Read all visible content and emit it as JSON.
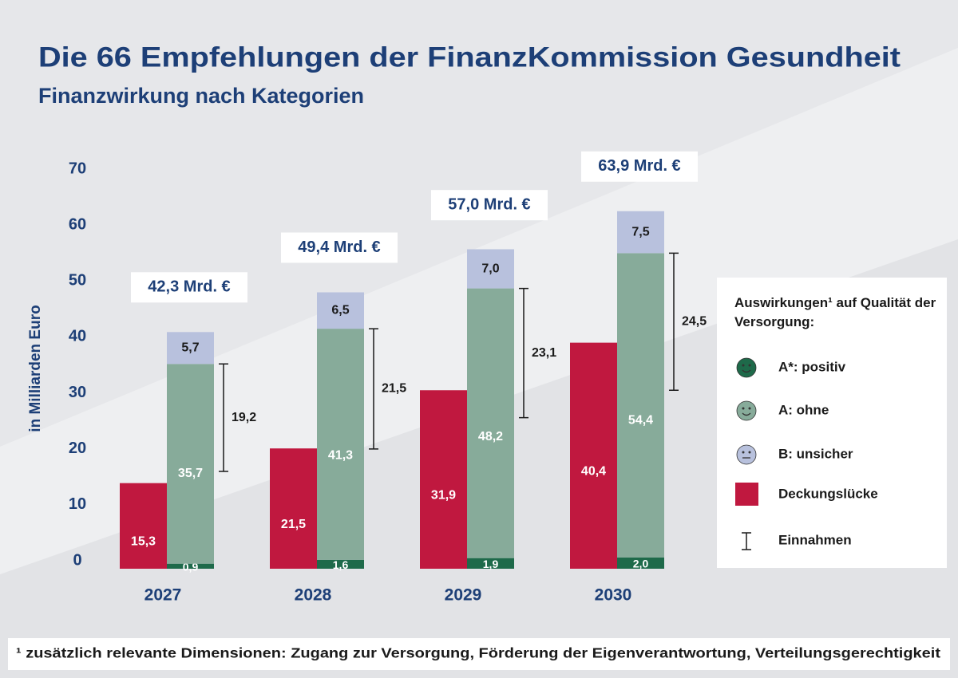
{
  "chart_data": {
    "type": "bar",
    "title": "Die 66 Empfehlungen der FinanzKommission Gesundheit",
    "subtitle": "Finanzwirkung nach Kategorien",
    "y_label": "in Milliarden Euro",
    "categories": [
      "2027",
      "2028",
      "2029",
      "2030"
    ],
    "ylim": [
      0,
      70
    ],
    "yticks": [
      0,
      10,
      20,
      30,
      40,
      50,
      60,
      70
    ],
    "series": [
      {
        "name": "A*: positiv",
        "color": "#1e6a4a",
        "values": [
          0.9,
          1.6,
          1.9,
          2.0
        ],
        "value_labels": [
          "0,9",
          "1,6",
          "1,9",
          "2,0"
        ]
      },
      {
        "name": "A: ohne",
        "color": "#87ab9a",
        "values": [
          35.7,
          41.3,
          48.2,
          54.4
        ],
        "value_labels": [
          "35,7",
          "41,3",
          "48,2",
          "54,4"
        ]
      },
      {
        "name": "B: unsicher",
        "color": "#b8c1dd",
        "values": [
          5.7,
          6.5,
          7.0,
          7.5
        ],
        "value_labels": [
          "5,7",
          "6,5",
          "7,0",
          "7,5"
        ]
      }
    ],
    "gap_series": {
      "name": "Deckungslücke",
      "color": "#c0183f",
      "values": [
        15.3,
        21.5,
        31.9,
        40.4
      ],
      "value_labels": [
        "15,3",
        "21,5",
        "31,9",
        "40,4"
      ]
    },
    "error_series": {
      "name": "Einnahmen",
      "values": [
        19.2,
        21.5,
        23.1,
        24.5
      ],
      "value_labels": [
        "19,2",
        "21,5",
        "23,1",
        "24,5"
      ]
    },
    "totals": {
      "values": [
        42.3,
        49.4,
        57.0,
        63.9
      ],
      "value_labels": [
        "42,3 Mrd. €",
        "49,4 Mrd. €",
        "57,0 Mrd. €",
        "63,9 Mrd. €"
      ]
    },
    "legend_title": "Auswirkungen¹ auf Qualität der Versorgung:",
    "footnote": "¹ zusätzlich relevante Dimensionen: Zugang zur Versorgung, Förderung der Eigenverantwortung, Verteilungsgerechtigkeit"
  }
}
